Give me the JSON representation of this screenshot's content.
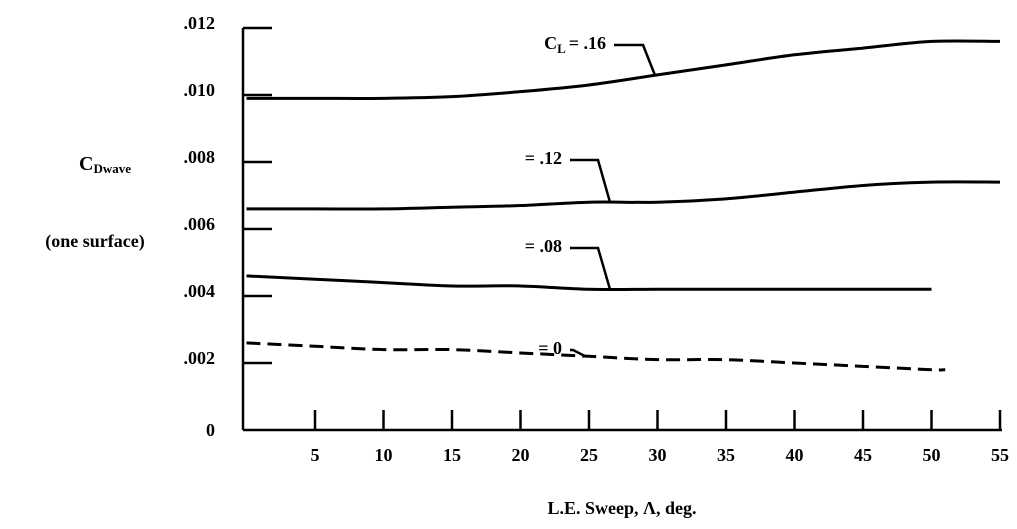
{
  "chart_data": {
    "type": "line",
    "y_label": {
      "text": "C",
      "sub": "Dwave"
    },
    "y_label_note": "(one surface)",
    "x_label": "L.E. Sweep, Λ, deg.",
    "series_label_prefix": {
      "text": "C",
      "sub": "L"
    },
    "xlim": [
      0,
      55
    ],
    "xticks": [
      5,
      10,
      15,
      20,
      25,
      30,
      35,
      40,
      45,
      50,
      55
    ],
    "ylim": [
      0,
      0.012
    ],
    "yticks": [
      0,
      {
        "value": 0.002,
        "label": ".002"
      },
      {
        "value": 0.004,
        "label": ".004"
      },
      {
        "value": 0.006,
        "label": ".006"
      },
      {
        "value": 0.008,
        "label": ".008"
      },
      {
        "value": 0.01,
        "label": ".010"
      },
      {
        "value": 0.012,
        "label": ".012"
      }
    ],
    "series": [
      {
        "name": "= .16",
        "color": "#000",
        "dashed": false,
        "x": [
          0,
          5,
          10,
          15,
          20,
          25,
          30,
          35,
          40,
          45,
          50,
          55
        ],
        "values": [
          0.0099,
          0.0099,
          0.0099,
          0.00995,
          0.0101,
          0.0103,
          0.0106,
          0.0109,
          0.0112,
          0.0114,
          0.0116,
          0.0116
        ]
      },
      {
        "name": "= .12",
        "color": "#000",
        "dashed": false,
        "x": [
          0,
          5,
          10,
          15,
          20,
          25,
          30,
          35,
          40,
          45,
          50,
          55
        ],
        "values": [
          0.0066,
          0.0066,
          0.0066,
          0.00665,
          0.0067,
          0.0068,
          0.0068,
          0.0069,
          0.0071,
          0.0073,
          0.0074,
          0.0074
        ]
      },
      {
        "name": "= .08",
        "color": "#000",
        "dashed": false,
        "x": [
          0,
          5,
          10,
          15,
          20,
          25,
          30,
          35,
          40,
          45,
          50
        ],
        "values": [
          0.0046,
          0.0045,
          0.0044,
          0.0043,
          0.0043,
          0.0042,
          0.0042,
          0.0042,
          0.0042,
          0.0042,
          0.0042
        ]
      },
      {
        "name": "= 0",
        "color": "#000",
        "dashed": true,
        "x": [
          0,
          5,
          10,
          15,
          20,
          25,
          30,
          35,
          40,
          45,
          50,
          51
        ],
        "values": [
          0.0026,
          0.0025,
          0.0024,
          0.0024,
          0.0023,
          0.0022,
          0.0021,
          0.0021,
          0.002,
          0.0019,
          0.0018,
          0.0018
        ]
      }
    ]
  }
}
